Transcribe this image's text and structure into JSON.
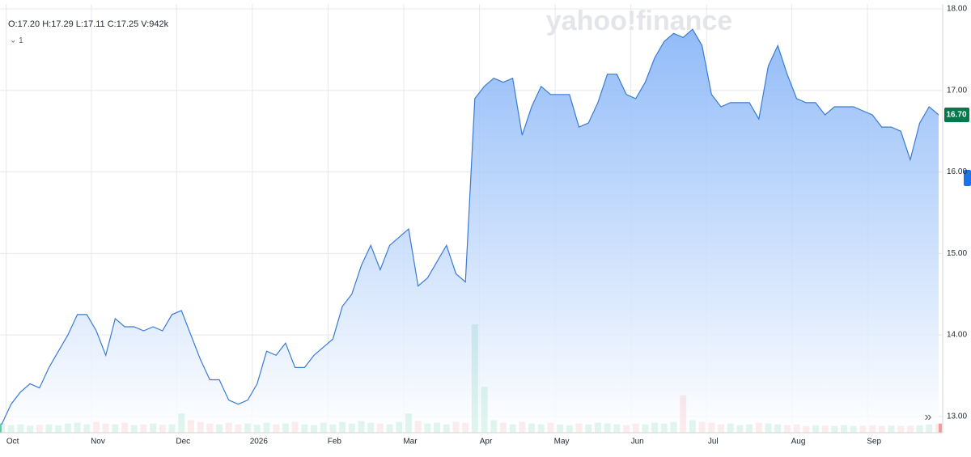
{
  "chart_data": {
    "type": "line",
    "watermark": "yahoo!finance",
    "ohlc": "O:17.20  H:17.29  L:17.11  C:17.25  V:942k",
    "interval": "1",
    "last_price": {
      "value": 16.7,
      "label": "16.70"
    },
    "categories": [
      null,
      "Oct",
      null,
      null,
      null,
      null,
      null,
      null,
      null,
      null,
      "Nov",
      null,
      null,
      null,
      null,
      null,
      null,
      null,
      null,
      "Dec",
      null,
      null,
      null,
      null,
      null,
      null,
      null,
      "2026",
      null,
      null,
      null,
      null,
      null,
      null,
      null,
      "Feb",
      null,
      null,
      null,
      null,
      null,
      null,
      null,
      "Mar",
      null,
      null,
      null,
      null,
      null,
      null,
      null,
      "Apr",
      null,
      null,
      null,
      null,
      null,
      null,
      null,
      "May",
      null,
      null,
      null,
      null,
      null,
      null,
      null,
      "Jun",
      null,
      null,
      null,
      null,
      null,
      null,
      null,
      "Jul",
      null,
      null,
      null,
      null,
      null,
      null,
      null,
      null,
      "Aug",
      null,
      null,
      null,
      null,
      null,
      null,
      null,
      "Sep",
      null,
      null,
      null,
      null,
      null,
      null,
      null
    ],
    "series": [
      {
        "name": "Close",
        "color": "#3a7bd5",
        "values": [
          12.9,
          13.15,
          13.3,
          13.4,
          13.35,
          13.6,
          13.8,
          14.0,
          14.25,
          14.25,
          14.05,
          13.75,
          14.2,
          14.1,
          14.1,
          14.05,
          14.1,
          14.05,
          14.25,
          14.3,
          14.0,
          13.7,
          13.45,
          13.45,
          13.2,
          13.15,
          13.2,
          13.4,
          13.8,
          13.75,
          13.9,
          13.6,
          13.6,
          13.75,
          13.85,
          13.95,
          14.35,
          14.5,
          14.85,
          15.1,
          14.8,
          15.1,
          15.2,
          15.3,
          14.6,
          14.7,
          14.9,
          15.1,
          14.75,
          14.65,
          16.9,
          17.05,
          17.15,
          17.1,
          17.15,
          16.45,
          16.8,
          17.05,
          16.95,
          16.95,
          16.95,
          16.55,
          16.6,
          16.85,
          17.2,
          17.2,
          16.95,
          16.9,
          17.1,
          17.4,
          17.6,
          17.7,
          17.65,
          17.75,
          17.55,
          16.95,
          16.8,
          16.85,
          16.85,
          16.85,
          16.65,
          17.3,
          17.55,
          17.2,
          16.9,
          16.85,
          16.85,
          16.7,
          16.8,
          16.8,
          16.8,
          16.75,
          16.7,
          16.55,
          16.55,
          16.5,
          16.15,
          16.6,
          16.8,
          16.7
        ]
      },
      {
        "name": "Volume",
        "up_color": "#45c490",
        "down_color": "#f08a8a",
        "values": [
          1100,
          900,
          1000,
          850,
          950,
          1000,
          900,
          1100,
          1200,
          1000,
          1300,
          1100,
          1000,
          1200,
          900,
          1000,
          1100,
          950,
          1000,
          2300,
          1500,
          1300,
          1100,
          1000,
          1200,
          1000,
          1100,
          950,
          1200,
          1000,
          1100,
          1300,
          1000,
          900,
          1200,
          1000,
          1300,
          1100,
          1400,
          1200,
          1100,
          1000,
          1300,
          2300,
          1400,
          1100,
          1200,
          1000,
          1300,
          1200,
          13000,
          5500,
          1500,
          1200,
          1000,
          1300,
          1100,
          1000,
          1200,
          1000,
          900,
          1100,
          1000,
          1200,
          1100,
          1000,
          900,
          1100,
          1000,
          1200,
          1100,
          1300,
          4500,
          1500,
          1300,
          1200,
          1000,
          1100,
          900,
          1000,
          1200,
          1100,
          1000,
          900,
          1000,
          800,
          900,
          850,
          800,
          900,
          800,
          850,
          900,
          800,
          850,
          800,
          850,
          900,
          1000,
          1100
        ]
      }
    ],
    "ylim": [
      12.8,
      18.06
    ],
    "yticks": [
      {
        "value": 13,
        "label": "13.00"
      },
      {
        "value": 14,
        "label": "14.00"
      },
      {
        "value": 15,
        "label": "15.00"
      },
      {
        "value": 16,
        "label": "16.00"
      },
      {
        "value": 17,
        "label": "17.00"
      },
      {
        "value": 18,
        "label": "18.00"
      }
    ],
    "grid": true
  }
}
